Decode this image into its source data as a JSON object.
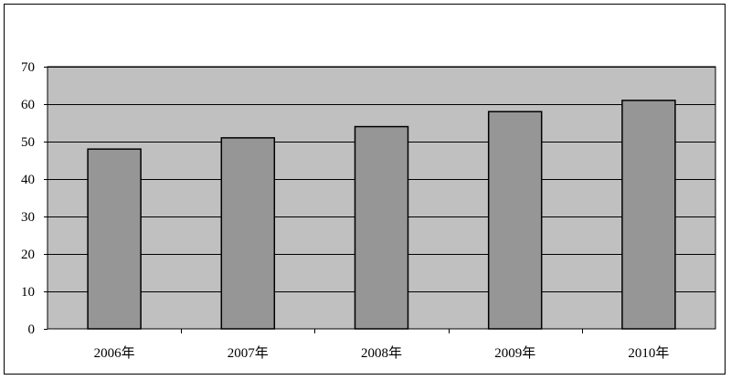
{
  "chart_data": {
    "type": "bar",
    "categories": [
      "2006年",
      "2007年",
      "2008年",
      "2009年",
      "2010年"
    ],
    "values": [
      48,
      51,
      54,
      58,
      61
    ],
    "ylim": [
      0,
      70
    ],
    "yticks": [
      0,
      10,
      20,
      30,
      40,
      50,
      60,
      70
    ],
    "grid": true,
    "title": "",
    "xlabel": "",
    "ylabel": "",
    "colors": {
      "plot_background": "#c0c0c0",
      "bar_fill": "#969696",
      "bar_stroke": "#000000",
      "gridline": "#000000"
    }
  }
}
